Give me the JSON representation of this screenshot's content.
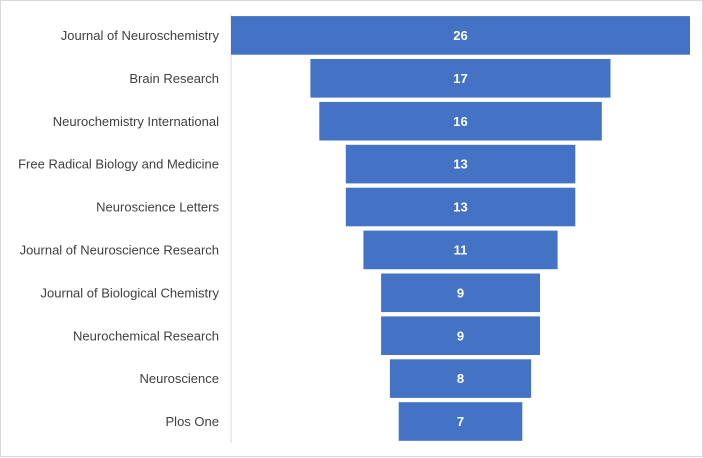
{
  "chart_data": {
    "type": "bar",
    "orientation": "horizontal",
    "style": "funnel",
    "categories": [
      "Journal of Neuroschemistry",
      "Brain Research",
      "Neurochemistry International",
      "Free Radical Biology and Medicine",
      "Neuroscience Letters",
      "Journal of Neuroscience Research",
      "Journal of Biological Chemistry",
      "Neurochemical Research",
      "Neuroscience",
      "Plos One"
    ],
    "values": [
      26,
      17,
      16,
      13,
      13,
      11,
      9,
      9,
      8,
      7
    ],
    "xlim": [
      0,
      26
    ],
    "title": "",
    "xlabel": "",
    "ylabel": "",
    "grid": false,
    "legend": "none",
    "data_labels": true,
    "bar_color": "#4472c4",
    "label_color": "#404040",
    "value_label_color": "#ffffff"
  }
}
